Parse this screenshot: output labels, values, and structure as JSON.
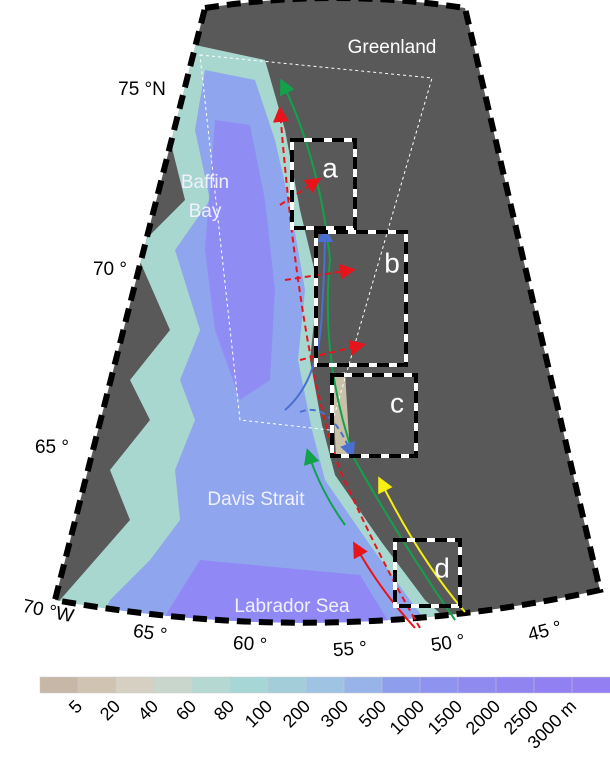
{
  "map": {
    "regions": [
      "Greenland",
      "Baffin",
      "Bay",
      "Davis Strait",
      "Labrador Sea"
    ],
    "latitude_labels": [
      "75 °N",
      "70 °",
      "65 °"
    ],
    "longitude_labels": [
      "70 °W",
      "65 °",
      "60 °",
      "55 °",
      "50 °",
      "45 °"
    ],
    "boxes": [
      "a",
      "b",
      "c",
      "d"
    ]
  },
  "colorbar": {
    "labels": [
      "5",
      "20",
      "40",
      "60",
      "80",
      "100",
      "200",
      "300",
      "500",
      "1000",
      "1500",
      "2000",
      "2500",
      "3000 m"
    ]
  }
}
